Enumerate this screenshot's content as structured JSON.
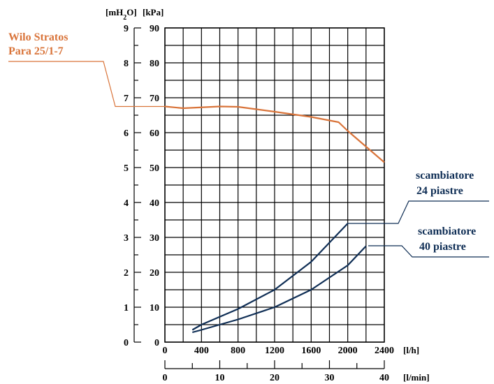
{
  "chart_data": {
    "type": "line",
    "y_units": {
      "mwc": "[mH2O]",
      "kpa": "[kPa]"
    },
    "x_units": {
      "lh": "[l/h]",
      "lmin": "[l/min]"
    },
    "y_ticks_mwc": [
      "0",
      "1",
      "2",
      "3",
      "4",
      "5",
      "6",
      "7",
      "8",
      "9"
    ],
    "y_ticks_kpa": [
      "0",
      "10",
      "20",
      "30",
      "40",
      "50",
      "60",
      "70",
      "80",
      "90"
    ],
    "x_ticks_lh": [
      "0",
      "400",
      "800",
      "1200",
      "1600",
      "2000",
      "2400"
    ],
    "x_ticks_lmin": [
      "0",
      "10",
      "20",
      "30",
      "40"
    ],
    "xlim_lh": [
      0,
      2400
    ],
    "ylim_kpa": [
      0,
      90
    ],
    "lmin_per_lh": 0.016667,
    "grid": true,
    "colors": {
      "pump": "#d9743a",
      "exchanger": "#0f2e55"
    },
    "series": [
      {
        "name_lines": [
          "Wilo Stratos",
          "Para 25/1-7"
        ],
        "role": "pump",
        "x": [
          0,
          200,
          600,
          800,
          1200,
          1600,
          1900,
          2000,
          2200,
          2400
        ],
        "y": [
          67.5,
          67,
          67.5,
          67.4,
          66,
          64.5,
          63,
          60.5,
          56,
          51.5
        ]
      },
      {
        "name_lines": [
          "scambiatore",
          "24 piastre"
        ],
        "role": "exchanger",
        "x": [
          300,
          400,
          800,
          1200,
          1600,
          1800,
          2000
        ],
        "y": [
          3.5,
          5,
          9.5,
          15,
          23,
          28.5,
          34
        ]
      },
      {
        "name_lines": [
          "scambiatore",
          "40 piastre"
        ],
        "role": "exchanger",
        "x": [
          300,
          400,
          800,
          1200,
          1600,
          2000,
          2200
        ],
        "y": [
          2.8,
          3.5,
          6.5,
          10,
          15,
          22,
          27.5
        ]
      }
    ]
  }
}
